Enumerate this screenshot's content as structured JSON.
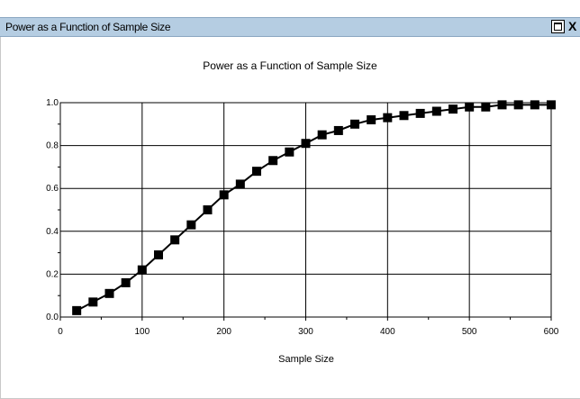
{
  "window": {
    "title": "Power as a Function of Sample Size",
    "maximize_glyph": "",
    "close_glyph": "X"
  },
  "chart_data": {
    "type": "line",
    "title": "Power as a Function of Sample Size",
    "xlabel": "Sample Size",
    "ylabel": "",
    "xlim": [
      0,
      600
    ],
    "ylim": [
      0,
      1.0
    ],
    "xticks": [
      "0",
      "100",
      "200",
      "300",
      "400",
      "500",
      "600"
    ],
    "yticks": [
      "0.0",
      "0.2",
      "0.4",
      "0.6",
      "0.8",
      "1.0"
    ],
    "grid": true,
    "marker": "square",
    "series": [
      {
        "x": [
          20,
          40,
          60,
          80,
          100,
          120,
          140,
          160,
          180,
          200,
          220,
          240,
          260,
          280,
          300,
          320,
          340,
          360,
          380,
          400,
          420,
          440,
          460,
          480,
          500,
          520,
          540,
          560,
          580,
          600
        ],
        "values": [
          0.03,
          0.07,
          0.11,
          0.16,
          0.22,
          0.29,
          0.36,
          0.43,
          0.5,
          0.57,
          0.62,
          0.68,
          0.73,
          0.77,
          0.81,
          0.85,
          0.87,
          0.9,
          0.92,
          0.93,
          0.94,
          0.95,
          0.96,
          0.97,
          0.98,
          0.98,
          0.99,
          0.99,
          0.99,
          0.99
        ],
        "color": "#000000"
      }
    ]
  }
}
